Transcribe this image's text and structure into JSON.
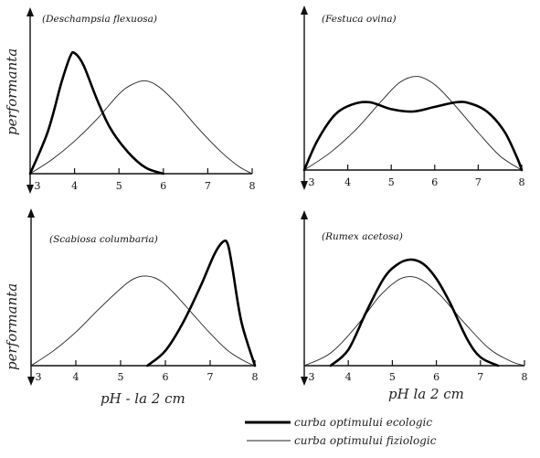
{
  "chart_data": [
    {
      "type": "line",
      "title": "(Deschampsia flexuosa)",
      "ylabel": "performanta",
      "xlabel": "",
      "x_ticks": [
        3,
        4,
        5,
        6,
        7,
        8
      ],
      "xlim": [
        3,
        8
      ],
      "series": [
        {
          "name": "curba optimului ecologic",
          "x": [
            3.0,
            3.4,
            3.7,
            3.9,
            4.0,
            4.2,
            4.5,
            4.8,
            5.2,
            5.6,
            6.0
          ],
          "y": [
            0.0,
            0.35,
            0.75,
            0.97,
            1.0,
            0.9,
            0.62,
            0.38,
            0.18,
            0.05,
            0.0
          ]
        },
        {
          "name": "curba optimului fiziologic",
          "x": [
            3.0,
            3.5,
            4.0,
            4.5,
            5.0,
            5.3,
            5.6,
            5.9,
            6.3,
            6.8,
            7.3,
            7.7,
            8.0
          ],
          "y": [
            0.0,
            0.12,
            0.27,
            0.45,
            0.66,
            0.74,
            0.77,
            0.72,
            0.58,
            0.37,
            0.18,
            0.06,
            0.0
          ]
        }
      ]
    },
    {
      "type": "line",
      "title": "(Festuca ovina)",
      "xlabel": "",
      "x_ticks": [
        3,
        4,
        5,
        6,
        7,
        8
      ],
      "xlim": [
        3,
        8
      ],
      "series": [
        {
          "name": "curba optimului ecologic",
          "x": [
            3.0,
            3.3,
            3.7,
            4.1,
            4.5,
            5.0,
            5.5,
            6.0,
            6.5,
            6.8,
            7.2,
            7.6,
            7.9,
            8.0
          ],
          "y": [
            0.0,
            0.25,
            0.47,
            0.56,
            0.58,
            0.52,
            0.5,
            0.54,
            0.58,
            0.57,
            0.5,
            0.33,
            0.1,
            0.0
          ]
        },
        {
          "name": "curba optimului fiziologic",
          "x": [
            3.0,
            3.6,
            4.2,
            4.8,
            5.2,
            5.6,
            6.0,
            6.4,
            7.0,
            7.5,
            8.0
          ],
          "y": [
            0.0,
            0.15,
            0.35,
            0.6,
            0.75,
            0.8,
            0.73,
            0.58,
            0.32,
            0.12,
            0.0
          ]
        }
      ]
    },
    {
      "type": "line",
      "title": "(Scabiosa columbaria)",
      "ylabel": "performanta",
      "xlabel": "pH - la 2 cm",
      "x_ticks": [
        3,
        4,
        5,
        6,
        7,
        8
      ],
      "xlim": [
        3,
        8
      ],
      "series": [
        {
          "name": "curba optimului ecologic",
          "x": [
            5.6,
            6.0,
            6.4,
            6.8,
            7.1,
            7.3,
            7.4,
            7.5,
            7.7,
            8.0
          ],
          "y": [
            0.0,
            0.12,
            0.35,
            0.65,
            0.9,
            1.0,
            0.97,
            0.78,
            0.35,
            0.0
          ]
        },
        {
          "name": "curba optimului fiziologic",
          "x": [
            3.0,
            3.5,
            4.0,
            4.5,
            5.0,
            5.3,
            5.6,
            5.9,
            6.2,
            6.6,
            7.0,
            7.4,
            7.8,
            8.0
          ],
          "y": [
            0.0,
            0.12,
            0.27,
            0.45,
            0.62,
            0.7,
            0.72,
            0.68,
            0.58,
            0.42,
            0.26,
            0.12,
            0.03,
            0.0
          ]
        }
      ]
    },
    {
      "type": "line",
      "title": "(Rumex acetosa)",
      "xlabel": "pH la 2 cm",
      "x_ticks": [
        3,
        4,
        5,
        6,
        7,
        8
      ],
      "xlim": [
        3,
        8
      ],
      "series": [
        {
          "name": "curba optimului ecologic",
          "x": [
            3.6,
            4.0,
            4.4,
            4.8,
            5.1,
            5.4,
            5.7,
            6.0,
            6.3,
            6.7,
            7.0,
            7.4
          ],
          "y": [
            0.0,
            0.15,
            0.5,
            0.82,
            0.95,
            1.0,
            0.96,
            0.82,
            0.6,
            0.25,
            0.08,
            0.0
          ]
        },
        {
          "name": "curba optimului fiziologic",
          "x": [
            3.0,
            3.6,
            4.2,
            4.7,
            5.1,
            5.4,
            5.7,
            6.1,
            6.6,
            7.2,
            7.7,
            8.0
          ],
          "y": [
            0.0,
            0.12,
            0.38,
            0.65,
            0.8,
            0.84,
            0.8,
            0.66,
            0.42,
            0.16,
            0.04,
            0.0
          ]
        }
      ]
    }
  ],
  "legend": [
    {
      "label": "curba optimului ecologic",
      "style": "thick"
    },
    {
      "label": "curba optimului fiziologic",
      "style": "thin"
    }
  ],
  "colors": {
    "line": "#000000",
    "background": "#ffffff"
  }
}
